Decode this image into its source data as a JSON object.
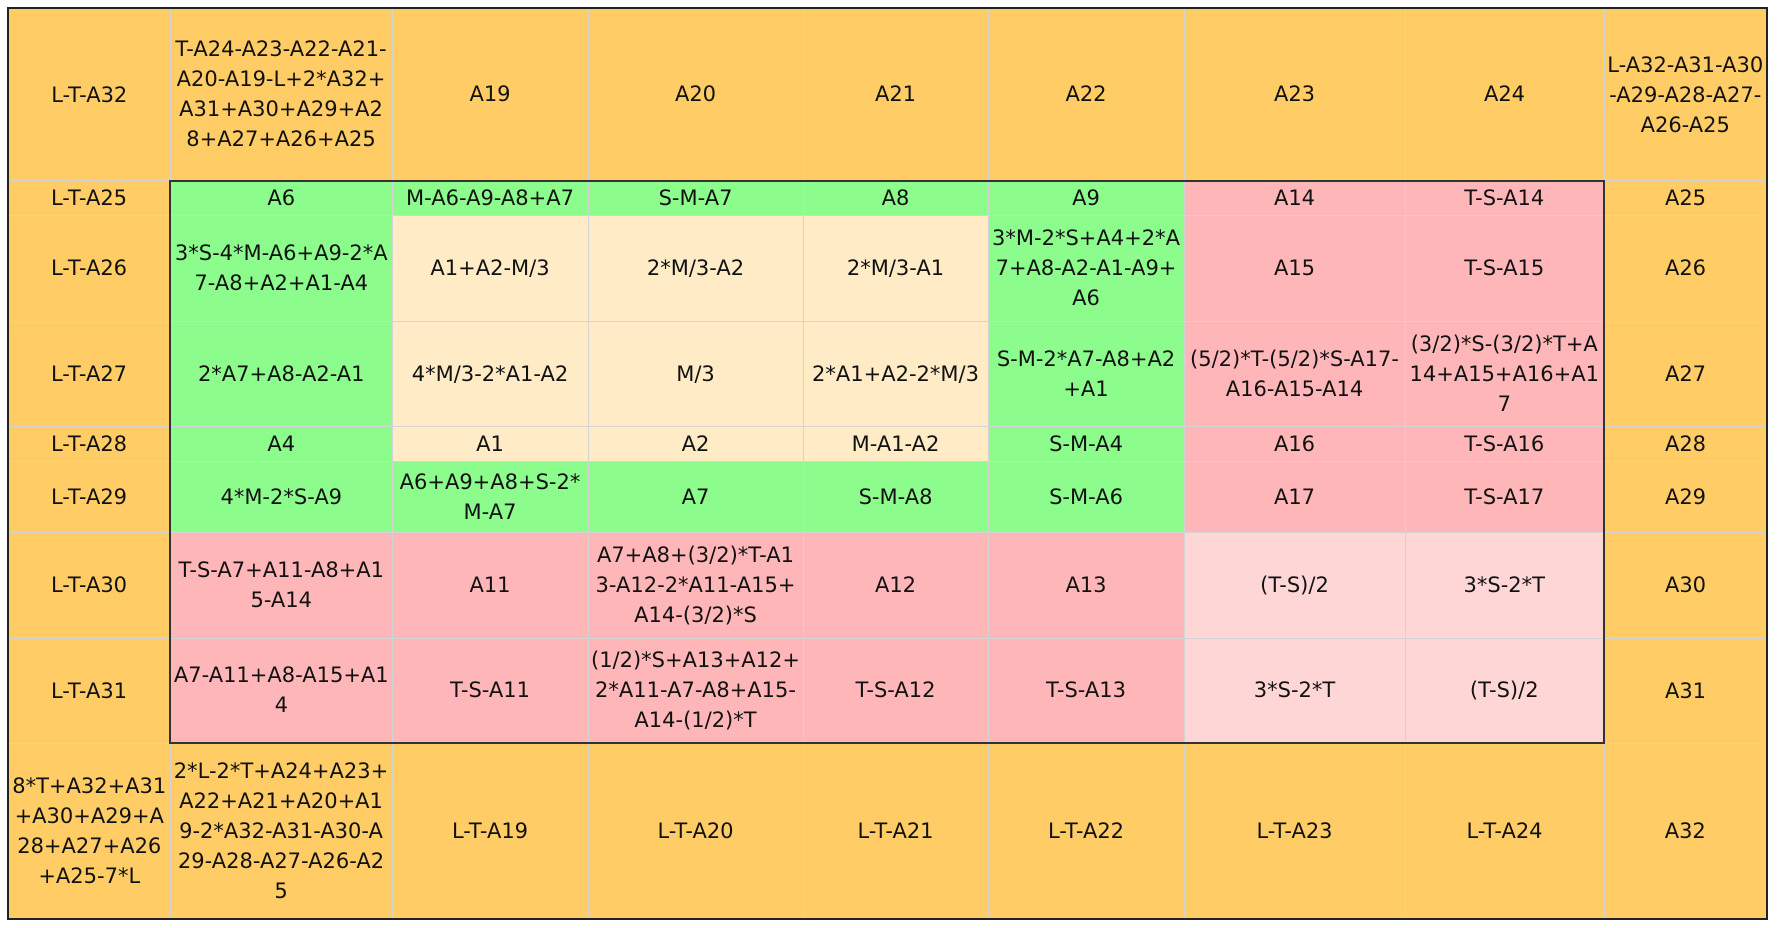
{
  "colors": {
    "orange": "#ffcc66",
    "green": "#8cfc8c",
    "cream": "#ffebc6",
    "pink": "#ffb6b8",
    "light_pink": "#ffd6d6"
  },
  "grid": {
    "rows": [
      {
        "cells": [
          {
            "text": "L-T-A32",
            "color": "orange"
          },
          {
            "text": "T-A24-A23-A22-A21-A20-A19-L+2*A32+A31+A30+A29+A28+A27+A26+A25",
            "color": "orange"
          },
          {
            "text": "A19",
            "color": "orange"
          },
          {
            "text": "A20",
            "color": "orange"
          },
          {
            "text": "A21",
            "color": "orange"
          },
          {
            "text": "A22",
            "color": "orange"
          },
          {
            "text": "A23",
            "color": "orange"
          },
          {
            "text": "A24",
            "color": "orange"
          },
          {
            "text": "L-A32-A31-A30-A29-A28-A27-A26-A25",
            "color": "orange"
          }
        ]
      },
      {
        "cells": [
          {
            "text": "L-T-A25",
            "color": "orange"
          },
          {
            "text": "A6",
            "color": "green"
          },
          {
            "text": "M-A6-A9-A8+A7",
            "color": "green"
          },
          {
            "text": "S-M-A7",
            "color": "green"
          },
          {
            "text": "A8",
            "color": "green"
          },
          {
            "text": "A9",
            "color": "green"
          },
          {
            "text": "A14",
            "color": "pink"
          },
          {
            "text": "T-S-A14",
            "color": "pink"
          },
          {
            "text": "A25",
            "color": "orange"
          }
        ]
      },
      {
        "cells": [
          {
            "text": "L-T-A26",
            "color": "orange"
          },
          {
            "text": "3*S-4*M-A6+A9-2*A7-A8+A2+A1-A4",
            "color": "green"
          },
          {
            "text": "A1+A2-M/3",
            "color": "cream"
          },
          {
            "text": "2*M/3-A2",
            "color": "cream"
          },
          {
            "text": "2*M/3-A1",
            "color": "cream"
          },
          {
            "text": "3*M-2*S+A4+2*A7+A8-A2-A1-A9+A6",
            "color": "green"
          },
          {
            "text": "A15",
            "color": "pink"
          },
          {
            "text": "T-S-A15",
            "color": "pink"
          },
          {
            "text": "A26",
            "color": "orange"
          }
        ]
      },
      {
        "cells": [
          {
            "text": "L-T-A27",
            "color": "orange"
          },
          {
            "text": "2*A7+A8-A2-A1",
            "color": "green"
          },
          {
            "text": "4*M/3-2*A1-A2",
            "color": "cream"
          },
          {
            "text": "M/3",
            "color": "cream"
          },
          {
            "text": "2*A1+A2-2*M/3",
            "color": "cream"
          },
          {
            "text": "S-M-2*A7-A8+A2+A1",
            "color": "green"
          },
          {
            "text": "(5/2)*T-(5/2)*S-A17-A16-A15-A14",
            "color": "pink"
          },
          {
            "text": "(3/2)*S-(3/2)*T+A14+A15+A16+A17",
            "color": "pink"
          },
          {
            "text": "A27",
            "color": "orange"
          }
        ]
      },
      {
        "cells": [
          {
            "text": "L-T-A28",
            "color": "orange"
          },
          {
            "text": "A4",
            "color": "green"
          },
          {
            "text": "A1",
            "color": "cream"
          },
          {
            "text": "A2",
            "color": "cream"
          },
          {
            "text": "M-A1-A2",
            "color": "cream"
          },
          {
            "text": "S-M-A4",
            "color": "green"
          },
          {
            "text": "A16",
            "color": "pink"
          },
          {
            "text": "T-S-A16",
            "color": "pink"
          },
          {
            "text": "A28",
            "color": "orange"
          }
        ]
      },
      {
        "cells": [
          {
            "text": "L-T-A29",
            "color": "orange"
          },
          {
            "text": "4*M-2*S-A9",
            "color": "green"
          },
          {
            "text": "A6+A9+A8+S-2*M-A7",
            "color": "green"
          },
          {
            "text": "A7",
            "color": "green"
          },
          {
            "text": "S-M-A8",
            "color": "green"
          },
          {
            "text": "S-M-A6",
            "color": "green"
          },
          {
            "text": "A17",
            "color": "pink"
          },
          {
            "text": "T-S-A17",
            "color": "pink"
          },
          {
            "text": "A29",
            "color": "orange"
          }
        ]
      },
      {
        "cells": [
          {
            "text": "L-T-A30",
            "color": "orange"
          },
          {
            "text": "T-S-A7+A11-A8+A15-A14",
            "color": "pink"
          },
          {
            "text": "A11",
            "color": "pink"
          },
          {
            "text": "A7+A8+(3/2)*T-A13-A12-2*A11-A15+A14-(3/2)*S",
            "color": "pink"
          },
          {
            "text": "A12",
            "color": "pink"
          },
          {
            "text": "A13",
            "color": "pink"
          },
          {
            "text": "(T-S)/2",
            "color": "light_pink"
          },
          {
            "text": "3*S-2*T",
            "color": "light_pink"
          },
          {
            "text": "A30",
            "color": "orange"
          }
        ]
      },
      {
        "cells": [
          {
            "text": "L-T-A31",
            "color": "orange"
          },
          {
            "text": "A7-A11+A8-A15+A14",
            "color": "pink"
          },
          {
            "text": "T-S-A11",
            "color": "pink"
          },
          {
            "text": "(1/2)*S+A13+A12+2*A11-A7-A8+A15-A14-(1/2)*T",
            "color": "pink"
          },
          {
            "text": "T-S-A12",
            "color": "pink"
          },
          {
            "text": "T-S-A13",
            "color": "pink"
          },
          {
            "text": "3*S-2*T",
            "color": "light_pink"
          },
          {
            "text": "(T-S)/2",
            "color": "light_pink"
          },
          {
            "text": "A31",
            "color": "orange"
          }
        ]
      },
      {
        "cells": [
          {
            "text": "8*T+A32+A31+A30+A29+A28+A27+A26+A25-7*L",
            "color": "orange"
          },
          {
            "text": "2*L-2*T+A24+A23+A22+A21+A20+A19-2*A32-A31-A30-A29-A28-A27-A26-A25",
            "color": "orange"
          },
          {
            "text": "L-T-A19",
            "color": "orange"
          },
          {
            "text": "L-T-A20",
            "color": "orange"
          },
          {
            "text": "L-T-A21",
            "color": "orange"
          },
          {
            "text": "L-T-A22",
            "color": "orange"
          },
          {
            "text": "L-T-A23",
            "color": "orange"
          },
          {
            "text": "L-T-A24",
            "color": "orange"
          },
          {
            "text": "A32",
            "color": "orange"
          }
        ]
      }
    ]
  }
}
